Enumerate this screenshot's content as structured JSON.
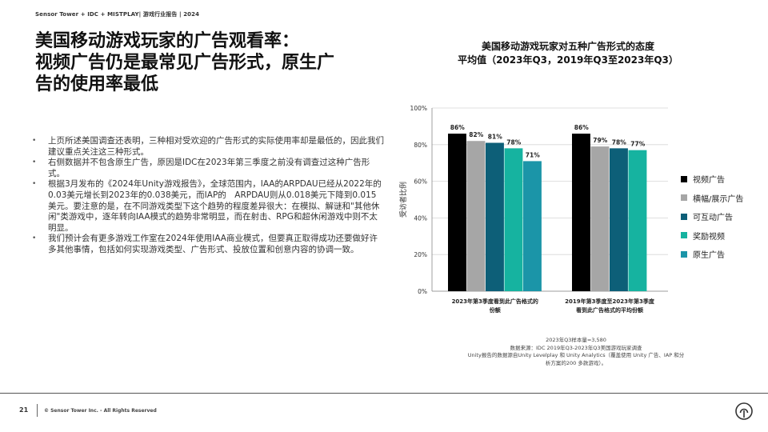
{
  "header": {
    "source_line": "Sensor Tower + IDC + MISTPLAY| 游戏行业报告 | 2024"
  },
  "page_title": {
    "lines": [
      "美国移动游戏玩家的广告观看率：",
      "视频广告仍是最常见广告形式，原生广",
      "告的使用率最低"
    ]
  },
  "bullets": [
    "上页所述美国调查还表明，三种相对受欢迎的广告形式的实际使用率却是最低的，因此我们建议重点关注这三种形式。",
    "右侧数据并不包含原生广告，原因是IDC在2023年第三季度之前没有调查过这种广告形式。",
    "根据3月发布的《2024年Unity游戏报告》，全球范围内，IAA的ARPDAU已经从2022年的0.03美元增长到2023年的0.038美元，而IAP的　ARPDAU则从0.018美元下降到0.015美元。要注意的是，在不同游戏类型下这个趋势的程度差异很大：在模拟、解谜和\"其他休闲\"类游戏中，逐年转向IAA模式的趋势非常明显，而在射击、RPG和超休闲游戏中则不太明显。",
    "我们预计会有更多游戏工作室在2024年使用IAA商业模式，但要真正取得成功还要做好许多其他事情，包括如何实现游戏类型、广告形式、投放位置和创意内容的协调一致。"
  ],
  "chart_data": {
    "type": "bar",
    "title_lines": [
      "美国移动游戏玩家对五种广告形式的态度",
      "平均值（2023年Q3，2019年Q3至2023年Q3）"
    ],
    "categories": [
      [
        "2023年第3季度看到此广告格式的",
        "份额"
      ],
      [
        "2019年第3季度至2023年第3季度",
        "看到此广告格式的平均份额"
      ]
    ],
    "series": [
      {
        "name": "视频广告",
        "color": "#000000",
        "values": [
          86,
          86
        ],
        "labels": [
          "86%",
          "86%"
        ]
      },
      {
        "name": "横幅/展示广告",
        "color": "#a6a6a6",
        "values": [
          82,
          79
        ],
        "labels": [
          "82%",
          "79%"
        ]
      },
      {
        "name": "可互动广告",
        "color": "#0d5f78",
        "values": [
          81,
          78
        ],
        "labels": [
          "81%",
          "78%"
        ]
      },
      {
        "name": "奖励视频",
        "color": "#16b3a0",
        "values": [
          78,
          77
        ],
        "labels": [
          "78%",
          "77%"
        ]
      },
      {
        "name": "原生广告",
        "color": "#1b95a8",
        "values": [
          71,
          null
        ],
        "labels": [
          "71%",
          ""
        ]
      }
    ],
    "ylabel": "受访者比例",
    "ylim": [
      0,
      100
    ],
    "yticks": [
      0,
      20,
      40,
      60,
      80,
      100
    ],
    "ytick_labels": [
      "0%",
      "20%",
      "40%",
      "60%",
      "80%",
      "100%"
    ],
    "grid": true,
    "legend_position": "right"
  },
  "notes": [
    "2023年Q3样本量=3,580",
    "数据来源：IDC 2019年Q3-2023年Q3美国游戏玩家调查",
    "Unity报告的数据源自Unity Levelplay 和 Unity Analytics（覆盖使用 Unity 广告、IAP 和分",
    "析方案的200 多款游戏）。"
  ],
  "footer": {
    "page_number": "21",
    "copyright": "© Sensor Tower Inc. - All Rights Reserved"
  }
}
